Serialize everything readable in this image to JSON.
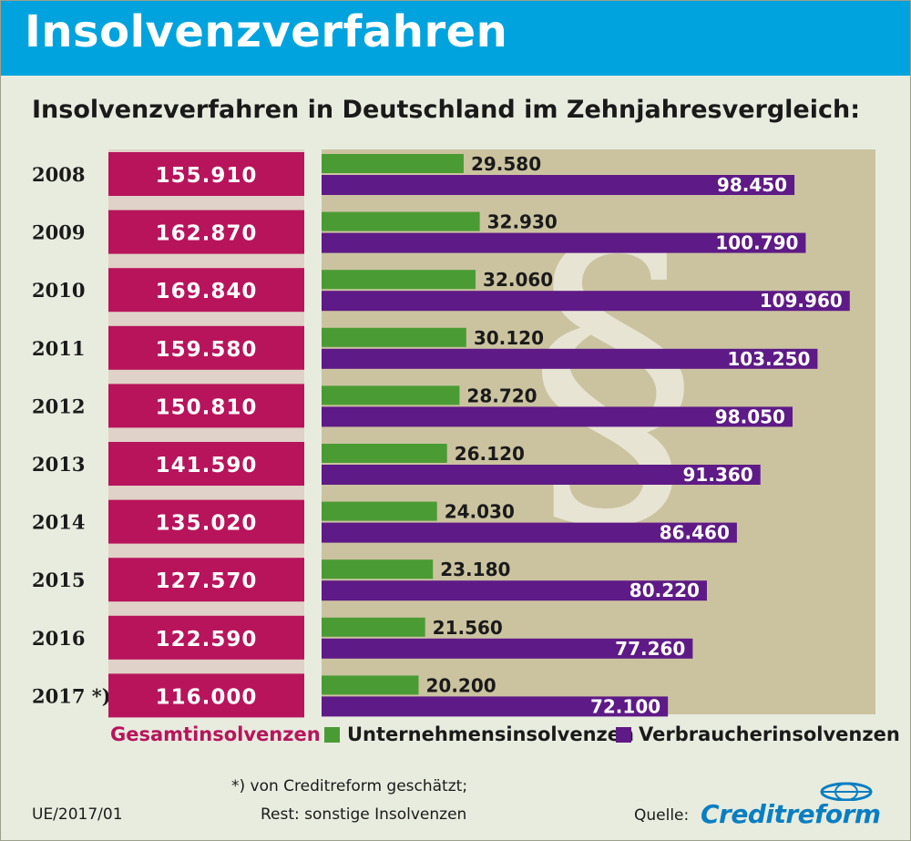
{
  "header": {
    "title": "Insolvenzverfahren"
  },
  "subtitle": "Insolvenzverfahren in Deutschland im Zehnjahresvergleich:",
  "chart_data": {
    "type": "bar",
    "title": "Insolvenzverfahren in Deutschland im Zehnjahresvergleich:",
    "categories": [
      "2008",
      "2009",
      "2010",
      "2011",
      "2012",
      "2013",
      "2014",
      "2015",
      "2016",
      "2017 *)"
    ],
    "series": [
      {
        "name": "Gesamtinsolvenzen",
        "values": [
          155910,
          162870,
          169840,
          159580,
          150810,
          141590,
          135020,
          127570,
          122590,
          116000
        ],
        "labels": [
          "155.910",
          "162.870",
          "169.840",
          "159.580",
          "150.810",
          "141.590",
          "135.020",
          "127.570",
          "122.590",
          "116.000"
        ],
        "color": "#b8145b"
      },
      {
        "name": "Unternehmensinsolvenzen",
        "values": [
          29580,
          32930,
          32060,
          30120,
          28720,
          26120,
          24030,
          23180,
          21560,
          20200
        ],
        "labels": [
          "29.580",
          "32.930",
          "32.060",
          "30.120",
          "28.720",
          "26.120",
          "24.030",
          "23.180",
          "21.560",
          "20.200"
        ],
        "color": "#4b9b35"
      },
      {
        "name": "Verbraucherinsolvenzen",
        "values": [
          98450,
          100790,
          109960,
          103250,
          98050,
          91360,
          86460,
          80220,
          77260,
          72100
        ],
        "labels": [
          "98.450",
          "100.790",
          "109.960",
          "103.250",
          "98.050",
          "91.360",
          "86.460",
          "80.220",
          "77.260",
          "72.100"
        ],
        "color": "#5e1a86"
      }
    ],
    "xlabel": "",
    "ylabel": "",
    "xlim": [
      0,
      110000
    ],
    "legend": "bottom",
    "grid": false
  },
  "watermark_glyph": "§",
  "legend": {
    "total": "Gesamtinsolvenzen",
    "business": "Unternehmensinsolvenzen",
    "consumer": "Verbraucherinsolvenzen"
  },
  "footer": {
    "note_line1": "*) von Creditreform geschätzt;",
    "note_line2": "Rest: sonstige Insolvenzen",
    "code": "UE/2017/01",
    "source_label": "Quelle:",
    "brand": "Creditreform"
  },
  "colors": {
    "header": "#00a3dd",
    "background": "#e8ecdf",
    "plot_area": "#cbc3a0",
    "total": "#b8145b",
    "business": "#4b9b35",
    "consumer": "#5e1a86",
    "brand": "#0a7ec2"
  }
}
